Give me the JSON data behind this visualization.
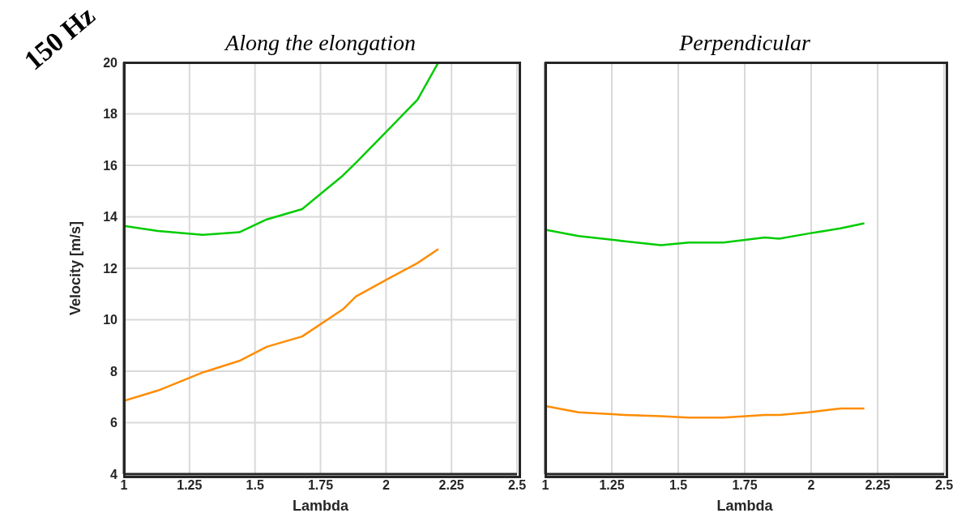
{
  "chart_data": [
    {
      "type": "line",
      "title": "Along the elongation",
      "xlabel": "Lambda",
      "ylabel": "Velocity [m/s]",
      "annotations": [
        "150 Hz"
      ],
      "x": [
        1,
        1.13,
        1.3,
        1.44,
        1.545,
        1.68,
        1.835,
        1.885,
        2.01,
        2.12,
        2.2
      ],
      "series": [
        {
          "color": "#00cc00",
          "values": [
            13.65,
            13.45,
            13.3,
            13.4,
            13.9,
            14.3,
            15.6,
            16.1,
            17.4,
            18.55,
            20
          ]
        },
        {
          "color": "#ff8c00",
          "values": [
            6.85,
            7.25,
            7.95,
            8.4,
            8.95,
            9.35,
            10.4,
            10.9,
            11.6,
            12.2,
            12.75
          ]
        }
      ],
      "xlim": [
        1,
        2.5
      ],
      "xticks": [
        1,
        1.25,
        1.5,
        1.75,
        2,
        2.25,
        2.5
      ],
      "ylim": [
        4,
        20
      ],
      "yticks": [
        4,
        6,
        8,
        10,
        12,
        14,
        16,
        18,
        20
      ],
      "grid": true,
      "legend": false,
      "marker": "none",
      "line_style": "solid"
    },
    {
      "type": "line",
      "title": "Perpendicular",
      "xlabel": "Lambda",
      "x": [
        1,
        1.125,
        1.3,
        1.435,
        1.54,
        1.67,
        1.825,
        1.88,
        1.99,
        2.11,
        2.2
      ],
      "series": [
        {
          "color": "#00cc00",
          "values": [
            13.5,
            13.25,
            13.05,
            12.9,
            13,
            13,
            13.2,
            13.15,
            13.35,
            13.55,
            13.75
          ]
        },
        {
          "color": "#ff8c00",
          "values": [
            6.65,
            6.4,
            6.3,
            6.25,
            6.2,
            6.2,
            6.3,
            6.3,
            6.4,
            6.55,
            6.55
          ]
        }
      ],
      "xlim": [
        1,
        2.5
      ],
      "xticks": [
        1,
        1.25,
        1.5,
        1.75,
        2,
        2.25,
        2.5
      ],
      "ylim": [
        4,
        20
      ],
      "yticks": [
        4,
        6,
        8,
        10,
        12,
        14,
        16,
        18,
        20
      ],
      "grid": true,
      "legend": false,
      "marker": "none",
      "line_style": "solid",
      "tick_labels": "x"
    }
  ]
}
